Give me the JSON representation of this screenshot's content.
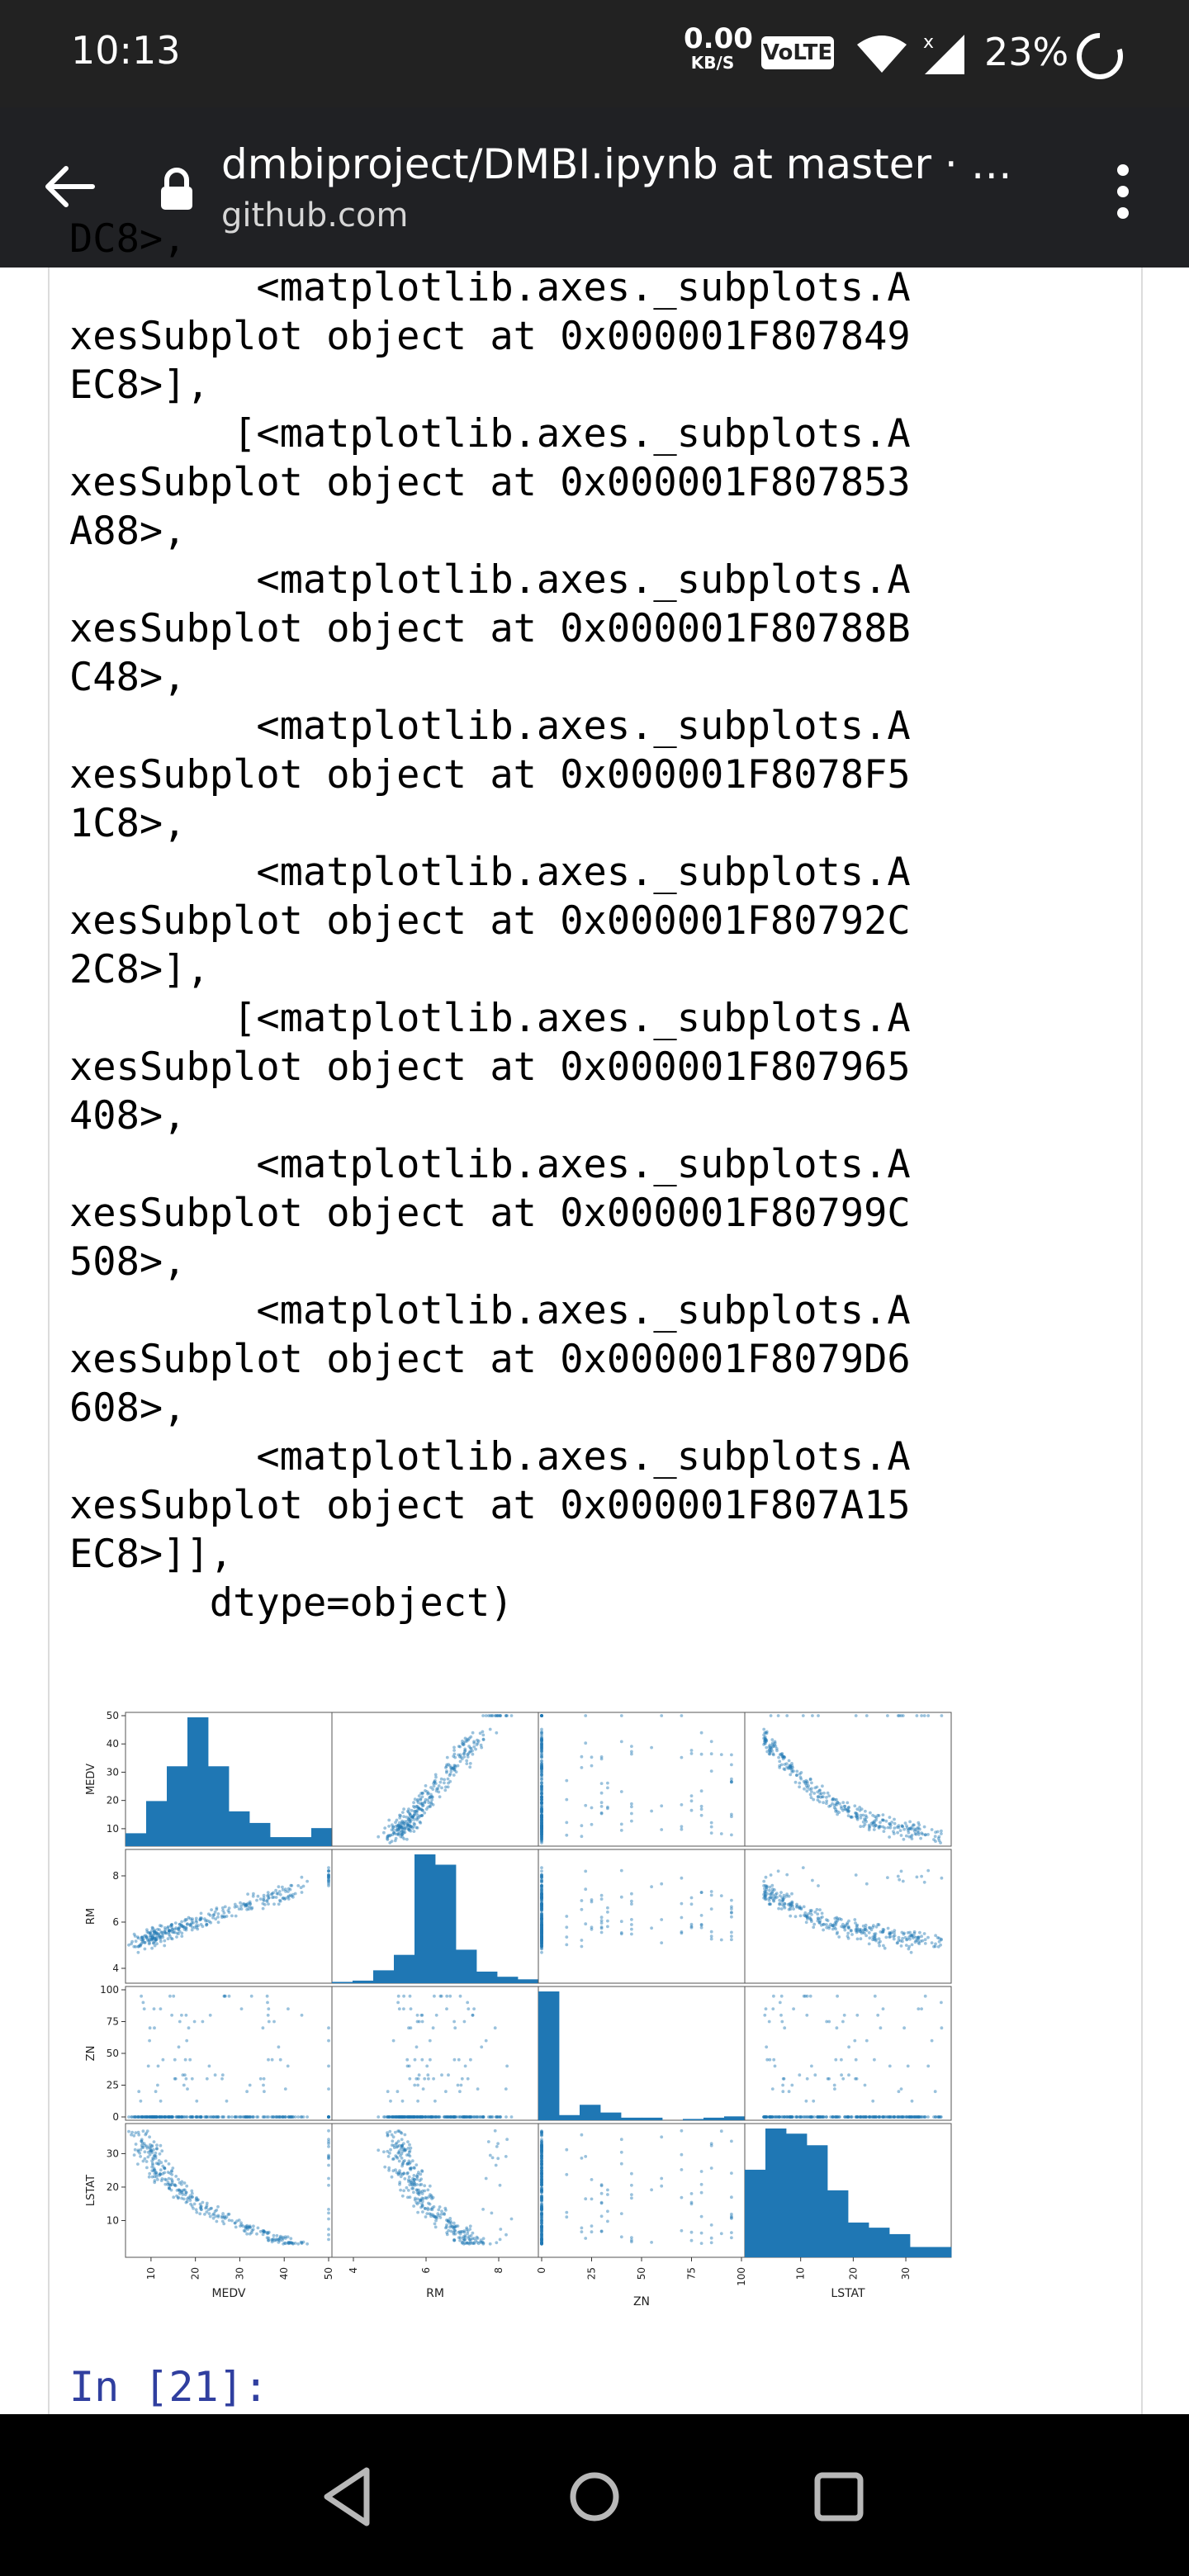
{
  "status_bar": {
    "time": "10:13",
    "net_speed_value": "0.00",
    "net_speed_unit": "KB/S",
    "volte": "VoLTE",
    "battery": "23%",
    "icons": [
      "wifi-icon",
      "signal-icon",
      "battery-icon"
    ]
  },
  "browser": {
    "title": "dmbiproject/DMBI.ipynb at master · …",
    "domain": "github.com",
    "icons": [
      "back-arrow-icon",
      "lock-icon",
      "more-vert-icon"
    ]
  },
  "notebook": {
    "output_text": "DC8>,\n        <matplotlib.axes._subplots.A\nxesSubplot object at 0x000001F807849\nEC8>],\n       [<matplotlib.axes._subplots.A\nxesSubplot object at 0x000001F807853\nA88>,\n        <matplotlib.axes._subplots.A\nxesSubplot object at 0x000001F80788B\nC48>,\n        <matplotlib.axes._subplots.A\nxesSubplot object at 0x000001F8078F5\n1C8>,\n        <matplotlib.axes._subplots.A\nxesSubplot object at 0x000001F80792C\n2C8>],\n       [<matplotlib.axes._subplots.A\nxesSubplot object at 0x000001F807965\n408>,\n        <matplotlib.axes._subplots.A\nxesSubplot object at 0x000001F80799C\n508>,\n        <matplotlib.axes._subplots.A\nxesSubplot object at 0x000001F8079D6\n608>,\n        <matplotlib.axes._subplots.A\nxesSubplot object at 0x000001F807A15\nEC8>]],\n      dtype=object)",
    "next_prompt": "In [21]:"
  },
  "chart_data": {
    "type": "scatter",
    "variables": [
      "MEDV",
      "RM",
      "ZN",
      "LSTAT"
    ],
    "ranges": [
      [
        5,
        50
      ],
      [
        3.5,
        9
      ],
      [
        0,
        100
      ],
      [
        0,
        38
      ]
    ],
    "ticks": [
      [
        10,
        20,
        30,
        40,
        50
      ],
      [
        4,
        6,
        8
      ],
      [
        0,
        25,
        50,
        75,
        100
      ],
      [
        10,
        20,
        30
      ]
    ],
    "histograms": {
      "MEDV": [
        0.1,
        0.35,
        0.62,
        1.0,
        0.62,
        0.27,
        0.18,
        0.07,
        0.07,
        0.14
      ],
      "RM": [
        0.01,
        0.02,
        0.1,
        0.22,
        1.0,
        0.92,
        0.26,
        0.09,
        0.05,
        0.03
      ],
      "ZN": [
        1.0,
        0.04,
        0.12,
        0.06,
        0.02,
        0.02,
        0.0,
        0.01,
        0.02,
        0.03
      ],
      "LSTAT": [
        0.68,
        1.0,
        0.96,
        0.87,
        0.52,
        0.27,
        0.23,
        0.18,
        0.08,
        0.08
      ]
    },
    "color": "#1f77b4",
    "grid": false
  },
  "navbar": {
    "icons": [
      "back-triangle-icon",
      "home-circle-icon",
      "recents-square-icon"
    ]
  }
}
